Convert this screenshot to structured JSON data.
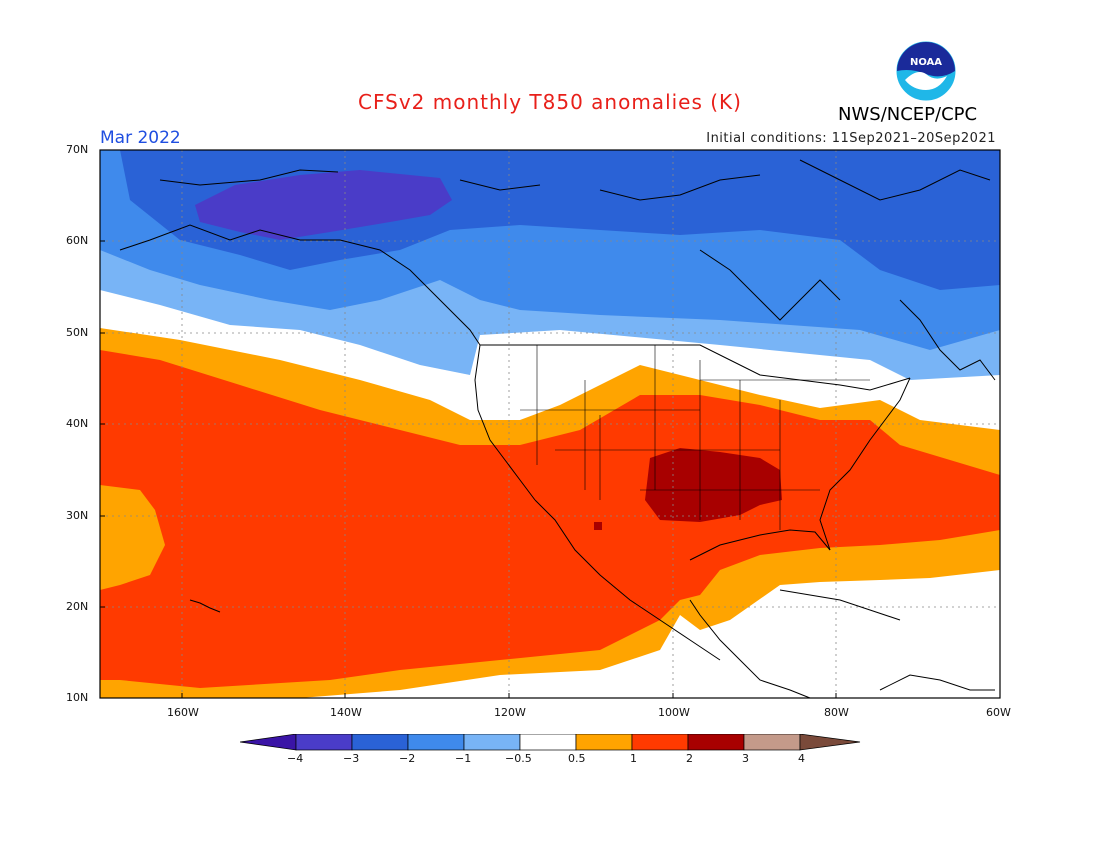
{
  "title": "CFSv2 monthly T850 anomalies (K)",
  "valid_month": "Mar 2022",
  "initial_conditions": "Initial conditions: 11Sep2021–20Sep2021",
  "agency": "NWS/NCEP/CPC",
  "logo_text": "NOAA",
  "lat_labels": [
    "70N",
    "60N",
    "50N",
    "40N",
    "30N",
    "20N",
    "10N"
  ],
  "lon_labels": [
    "160W",
    "140W",
    "120W",
    "100W",
    "80W",
    "60W"
  ],
  "colorbar": {
    "labels": [
      "−4",
      "−3",
      "−2",
      "−1",
      "−0.5",
      "0.5",
      "1",
      "2",
      "3",
      "4"
    ],
    "colors": [
      "#3a14a6",
      "#4a3cc8",
      "#2a62d6",
      "#3f8aec",
      "#78b4f6",
      "#ffffff",
      "#ffa400",
      "#ff3a00",
      "#a80000",
      "#c49a8a",
      "#7a4a3a"
    ]
  },
  "colors": {
    "title": "#e8201a",
    "month": "#1f4ee0",
    "land_border": "#000000"
  }
}
